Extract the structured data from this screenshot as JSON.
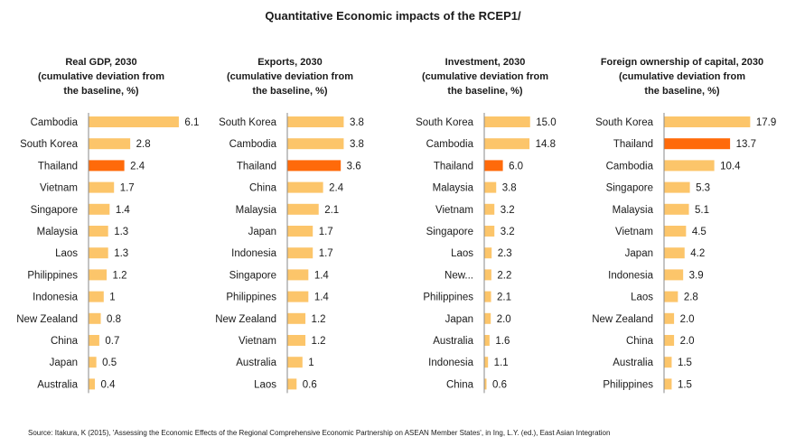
{
  "title": "Quantitative Economic impacts of the RCEP1/",
  "source": "Source: Itakura, K (2015), 'Assessing the Economic Effects of the Regional Comprehensive Economic Partnership on ASEAN Member States', in Ing, L.Y. (ed.), East Asian Integration",
  "colors": {
    "bar": "#FCC56A",
    "highlight": "#FF6A0A",
    "axis": "#8a8a8a"
  },
  "chart_data": [
    {
      "type": "bar",
      "orientation": "horizontal",
      "title_lines": [
        "Real GDP, 2030",
        "(cumulative deviation from",
        "the baseline, %)"
      ],
      "categories": [
        "Cambodia",
        "South Korea",
        "Thailand",
        "Vietnam",
        "Singapore",
        "Malaysia",
        "Laos",
        "Philippines",
        "Indonesia",
        "New Zealand",
        "China",
        "Japan",
        "Australia"
      ],
      "values": [
        6.1,
        2.8,
        2.4,
        1.7,
        1.4,
        1.3,
        1.3,
        1.2,
        1,
        0.8,
        0.7,
        0.5,
        0.4
      ],
      "labels": [
        "6.1",
        "2.8",
        "2.4",
        "1.7",
        "1.4",
        "1.3",
        "1.3",
        "1.2",
        "1",
        "0.8",
        "0.7",
        "0.5",
        "0.4"
      ],
      "highlight": "Thailand"
    },
    {
      "type": "bar",
      "orientation": "horizontal",
      "title_lines": [
        "Exports, 2030",
        "(cumulative deviation from",
        "the baseline, %)"
      ],
      "categories": [
        "South Korea",
        "Cambodia",
        "Thailand",
        "China",
        "Malaysia",
        "Japan",
        "Indonesia",
        "Singapore",
        "Philippines",
        "New Zealand",
        "Vietnam",
        "Australia",
        "Laos"
      ],
      "values": [
        3.8,
        3.8,
        3.6,
        2.4,
        2.1,
        1.7,
        1.7,
        1.4,
        1.4,
        1.2,
        1.2,
        1,
        0.6
      ],
      "labels": [
        "3.8",
        "3.8",
        "3.6",
        "2.4",
        "2.1",
        "1.7",
        "1.7",
        "1.4",
        "1.4",
        "1.2",
        "1.2",
        "1",
        "0.6"
      ],
      "highlight": "Thailand"
    },
    {
      "type": "bar",
      "orientation": "horizontal",
      "title_lines": [
        "Investment, 2030",
        "(cumulative deviation from",
        "the baseline, %)"
      ],
      "categories": [
        "South Korea",
        "Cambodia",
        "Thailand",
        "Malaysia",
        "Vietnam",
        "Singapore",
        "Laos",
        "New...",
        "Philippines",
        "Japan",
        "Australia",
        "Indonesia",
        "China"
      ],
      "values": [
        15.0,
        14.8,
        6.0,
        3.8,
        3.2,
        3.2,
        2.3,
        2.2,
        2.1,
        2.0,
        1.6,
        1.1,
        0.6
      ],
      "labels": [
        "15.0",
        "14.8",
        "6.0",
        "3.8",
        "3.2",
        "3.2",
        "2.3",
        "2.2",
        "2.1",
        "2.0",
        "1.6",
        "1.1",
        "0.6"
      ],
      "highlight": "Thailand"
    },
    {
      "type": "bar",
      "orientation": "horizontal",
      "title_lines": [
        "Foreign ownership of capital, 2030",
        "(cumulative deviation from",
        "the baseline, %)"
      ],
      "categories": [
        "South Korea",
        "Thailand",
        "Cambodia",
        "Singapore",
        "Malaysia",
        "Vietnam",
        "Japan",
        "Indonesia",
        "Laos",
        "New Zealand",
        "China",
        "Australia",
        "Philippines"
      ],
      "values": [
        17.9,
        13.7,
        10.4,
        5.3,
        5.1,
        4.5,
        4.2,
        3.9,
        2.8,
        2.0,
        2.0,
        1.5,
        1.5
      ],
      "labels": [
        "17.9",
        "13.7",
        "10.4",
        "5.3",
        "5.1",
        "4.5",
        "4.2",
        "3.9",
        "2.8",
        "2.0",
        "2.0",
        "1.5",
        "1.5"
      ],
      "highlight": "Thailand"
    }
  ]
}
